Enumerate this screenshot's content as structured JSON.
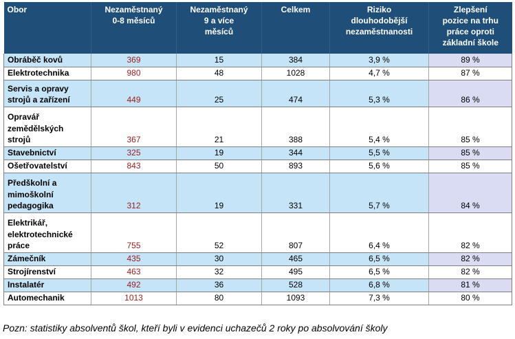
{
  "headers": {
    "obor": "Obor",
    "nez08_l1": "Nezaměstnaný",
    "nez08_l2": "0-8 měsíců",
    "nez9_l1": "Nezaměstnaný",
    "nez9_l2": "9 a více",
    "nez9_l3": "měsíců",
    "celkem": "Celkem",
    "riziko_l1": "Riziko",
    "riziko_l2": "dlouhodobější",
    "riziko_l3": "nezaměstnanosti",
    "zlep_l1": "Zlepšení",
    "zlep_l2": "pozice na trhu",
    "zlep_l3": "práce oproti",
    "zlep_l4": "základní škole"
  },
  "rows": [
    {
      "obor": [
        "Obráběč kovů"
      ],
      "nez08": "369",
      "nez9": "15",
      "celkem": "384",
      "riziko": "3,9 %",
      "zlep": "89 %"
    },
    {
      "obor": [
        "Elektrotechnika"
      ],
      "nez08": "980",
      "nez9": "48",
      "celkem": "1028",
      "riziko": "4,7 %",
      "zlep": "87 %"
    },
    {
      "obor": [
        "Servis a opravy",
        "strojů a zařízení"
      ],
      "nez08": "449",
      "nez9": "25",
      "celkem": "474",
      "riziko": "5,3 %",
      "zlep": "86 %"
    },
    {
      "obor": [
        "Opravář",
        "zemědělských",
        "strojů"
      ],
      "nez08": "367",
      "nez9": "21",
      "celkem": "388",
      "riziko": "5,4 %",
      "zlep": "85 %"
    },
    {
      "obor": [
        "Stavebnictví"
      ],
      "nez08": "325",
      "nez9": "19",
      "celkem": "344",
      "riziko": "5,5 %",
      "zlep": "85 %"
    },
    {
      "obor": [
        "Ošetřovatelství"
      ],
      "nez08": "843",
      "nez9": "50",
      "celkem": "893",
      "riziko": "5,6 %",
      "zlep": "85 %"
    },
    {
      "obor": [
        "Předškolní a",
        "mimoškolní",
        "pedagogika"
      ],
      "nez08": "312",
      "nez9": "19",
      "celkem": "331",
      "riziko": "5,7 %",
      "zlep": "84 %"
    },
    {
      "obor": [
        "Elektrikář,",
        "elektrotechnické",
        "práce"
      ],
      "nez08": "755",
      "nez9": "52",
      "celkem": "807",
      "riziko": "6,4 %",
      "zlep": "82 %"
    },
    {
      "obor": [
        "Zámečník"
      ],
      "nez08": "435",
      "nez9": "30",
      "celkem": "465",
      "riziko": "6,5 %",
      "zlep": "82 %"
    },
    {
      "obor": [
        "Strojírenství"
      ],
      "nez08": "463",
      "nez9": "32",
      "celkem": "495",
      "riziko": "6,5 %",
      "zlep": "82 %"
    },
    {
      "obor": [
        "Instalatér"
      ],
      "nez08": "492",
      "nez9": "36",
      "celkem": "528",
      "riziko": "6,8 %",
      "zlep": "81 %"
    },
    {
      "obor": [
        "Automechanik"
      ],
      "nez08": "1013",
      "nez9": "80",
      "celkem": "1093",
      "riziko": "7,3 %",
      "zlep": "80 %"
    }
  ],
  "note": "Pozn: statistiky absolventů škol, kteří byli v evidenci uchazečů 2 roky po absolvování školy"
}
